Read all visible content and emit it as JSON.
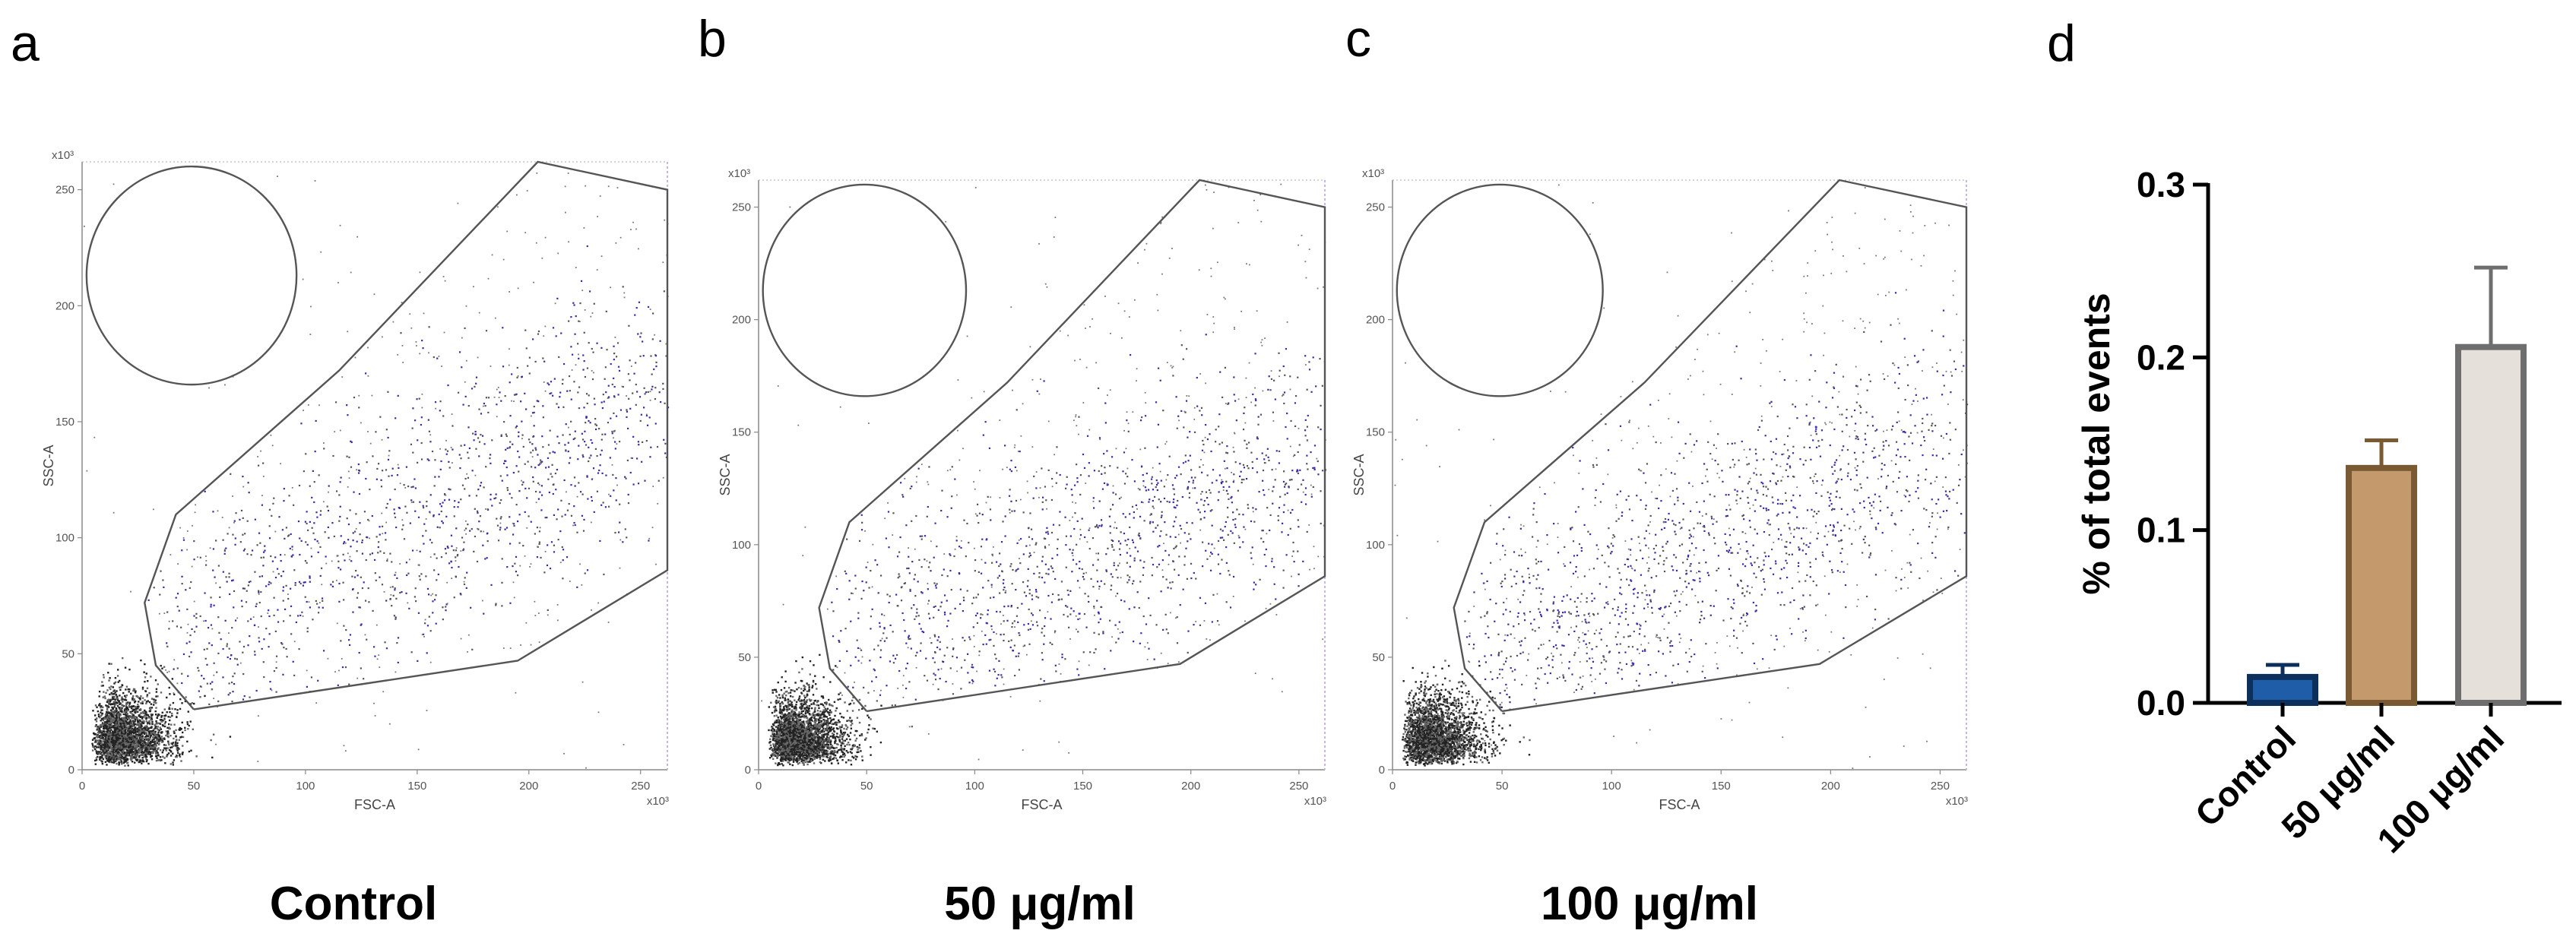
{
  "panel_labels": [
    "a",
    "b",
    "c",
    "d"
  ],
  "chart_data": [
    {
      "type": "scatter",
      "panel": "a",
      "caption": "Control",
      "xlabel": "FSC-A",
      "ylabel": "SSC-A",
      "x_unit": "x10³",
      "y_unit": "x10³",
      "xlim": [
        0,
        262
      ],
      "ylim": [
        0,
        262
      ],
      "xticks": [
        0,
        50,
        100,
        150,
        200,
        250
      ],
      "yticks": [
        0,
        50,
        100,
        150,
        200,
        250
      ],
      "gate_polygon": [
        [
          50,
          26
        ],
        [
          33,
          45
        ],
        [
          28,
          72
        ],
        [
          42,
          110
        ],
        [
          115,
          172
        ],
        [
          204,
          262
        ],
        [
          262,
          250
        ],
        [
          262,
          86
        ],
        [
          195,
          47
        ],
        [
          50,
          26
        ]
      ],
      "circle_gate": {
        "cx": 49,
        "cy": 213,
        "r": 47
      },
      "point_seed": 11,
      "cluster_strength": 1.0
    },
    {
      "type": "scatter",
      "panel": "b",
      "caption": "50 μg/ml",
      "xlabel": "FSC-A",
      "ylabel": "SSC-A",
      "x_unit": "x10³",
      "y_unit": "x10³",
      "xlim": [
        0,
        262
      ],
      "ylim": [
        0,
        262
      ],
      "xticks": [
        0,
        50,
        100,
        150,
        200,
        250
      ],
      "yticks": [
        0,
        50,
        100,
        150,
        200,
        250
      ],
      "gate_polygon": [
        [
          50,
          26
        ],
        [
          33,
          45
        ],
        [
          28,
          72
        ],
        [
          42,
          110
        ],
        [
          115,
          172
        ],
        [
          204,
          262
        ],
        [
          262,
          250
        ],
        [
          262,
          86
        ],
        [
          195,
          47
        ],
        [
          50,
          26
        ]
      ],
      "circle_gate": {
        "cx": 49,
        "cy": 213,
        "r": 47
      },
      "point_seed": 23,
      "cluster_strength": 0.8
    },
    {
      "type": "scatter",
      "panel": "c",
      "caption": "100 μg/ml",
      "xlabel": "FSC-A",
      "ylabel": "SSC-A",
      "x_unit": "x10³",
      "y_unit": "x10³",
      "xlim": [
        0,
        262
      ],
      "ylim": [
        0,
        262
      ],
      "xticks": [
        0,
        50,
        100,
        150,
        200,
        250
      ],
      "yticks": [
        0,
        50,
        100,
        150,
        200,
        250
      ],
      "gate_polygon": [
        [
          50,
          26
        ],
        [
          33,
          45
        ],
        [
          28,
          72
        ],
        [
          42,
          110
        ],
        [
          115,
          172
        ],
        [
          204,
          262
        ],
        [
          262,
          250
        ],
        [
          262,
          86
        ],
        [
          195,
          47
        ],
        [
          50,
          26
        ]
      ],
      "circle_gate": {
        "cx": 49,
        "cy": 213,
        "r": 47
      },
      "point_seed": 37,
      "cluster_strength": 0.85
    },
    {
      "type": "bar",
      "panel": "d",
      "categories": [
        "Control",
        "50 μg/ml",
        "100 μg/ml"
      ],
      "values": [
        0.015,
        0.136,
        0.206
      ],
      "errors": [
        0.007,
        0.016,
        0.046
      ],
      "fill_colors": [
        "#1f5da8",
        "#c49a6c",
        "#e5e1da"
      ],
      "edge_colors": [
        "#0d2f5c",
        "#7a5a32",
        "#6e6e6e"
      ],
      "ylabel": "% of total events",
      "ylim": [
        0,
        0.3
      ],
      "yticks": [
        0.0,
        0.1,
        0.2,
        0.3
      ],
      "ytick_labels": [
        "0.0",
        "0.1",
        "0.2",
        "0.3"
      ]
    }
  ]
}
